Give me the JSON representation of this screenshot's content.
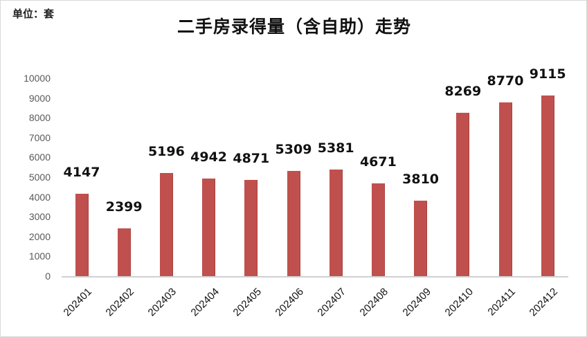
{
  "header": {
    "unit_label": "单位：套",
    "title": "二手房录得量（含自助）走势"
  },
  "colors": {
    "bar": "#c0504d",
    "axis": "#d0d0d0",
    "tick_text": "#595959",
    "label_text": "#111111"
  },
  "y_axis": {
    "ticks": [
      "0",
      "1000",
      "2000",
      "3000",
      "4000",
      "5000",
      "6000",
      "7000",
      "8000",
      "9000",
      "10000"
    ]
  },
  "chart_data": {
    "type": "bar",
    "title": "二手房录得量（含自助）走势",
    "subtitle": "单位：套",
    "xlabel": "",
    "ylabel": "",
    "categories": [
      "202401",
      "202402",
      "202403",
      "202404",
      "202405",
      "202406",
      "202407",
      "202408",
      "202409",
      "202410",
      "202411",
      "202412"
    ],
    "values": [
      4147,
      2399,
      5196,
      4942,
      4871,
      5309,
      5381,
      4671,
      3810,
      8269,
      8770,
      9115
    ],
    "data_labels": [
      "4147",
      "2399",
      "5196",
      "4942",
      "4871",
      "5309",
      "5381",
      "4671",
      "3810",
      "8269",
      "8770",
      "9115"
    ],
    "ylim": [
      0,
      10000
    ],
    "yticks": [
      0,
      1000,
      2000,
      3000,
      4000,
      5000,
      6000,
      7000,
      8000,
      9000,
      10000
    ],
    "grid": false,
    "legend": null
  }
}
